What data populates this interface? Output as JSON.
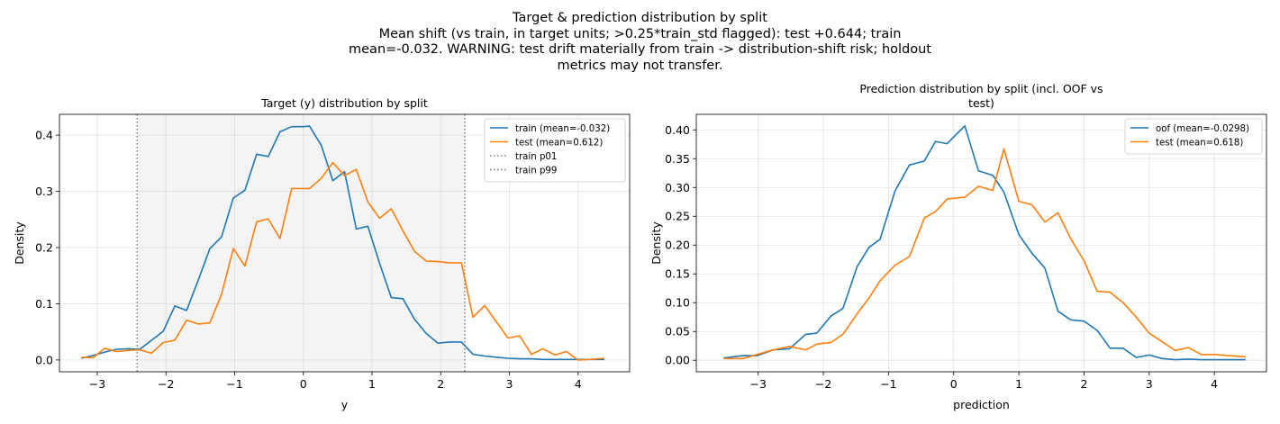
{
  "figure": {
    "suptitle_lines": [
      "Target & prediction distribution by split",
      "Mean shift (vs train, in target units; >0.25*train_std flagged): test +0.644; train",
      "mean=-0.032. WARNING: test drift materially from train -> distribution-shift risk; holdout",
      "metrics may not transfer."
    ]
  },
  "chart_data": [
    {
      "type": "line",
      "title": "Target (y) distribution by split",
      "xlabel": "y",
      "ylabel": "Density",
      "xlim": [
        -3.55,
        4.75
      ],
      "ylim": [
        -0.021,
        0.437
      ],
      "xticks": [
        -3,
        -2,
        -1,
        0,
        1,
        2,
        3,
        4
      ],
      "yticks": [
        0.0,
        0.1,
        0.2,
        0.3,
        0.4
      ],
      "ytick_format": 1,
      "grid": true,
      "legend": "top-right",
      "shaded_region": {
        "x0": -2.42,
        "x1": 2.35,
        "color": "#e9e9e9"
      },
      "vlines": [
        {
          "name": "train p01",
          "x": -2.42,
          "color": "#808080",
          "style": "dotted"
        },
        {
          "name": "train p99",
          "x": 2.35,
          "color": "#808080",
          "style": "dotted"
        }
      ],
      "series": [
        {
          "name": "train (mean=-0.032)",
          "color": "#1f77b4",
          "x": [
            -3.23,
            -3.06,
            -2.89,
            -2.72,
            -2.55,
            -2.38,
            -2.21,
            -2.04,
            -1.87,
            -1.7,
            -1.53,
            -1.36,
            -1.19,
            -1.02,
            -0.85,
            -0.68,
            -0.51,
            -0.34,
            -0.17,
            0.0,
            0.09,
            0.26,
            0.43,
            0.6,
            0.77,
            0.94,
            1.11,
            1.28,
            1.45,
            1.62,
            1.79,
            1.96,
            2.13,
            2.3,
            2.47,
            2.64,
            2.81,
            2.98,
            3.15,
            3.32,
            3.49,
            3.66,
            3.83,
            4.0,
            4.17,
            4.38
          ],
          "y": [
            0.003,
            0.008,
            0.014,
            0.019,
            0.02,
            0.019,
            0.035,
            0.051,
            0.096,
            0.088,
            0.142,
            0.198,
            0.219,
            0.288,
            0.302,
            0.366,
            0.362,
            0.406,
            0.415,
            0.415,
            0.416,
            0.382,
            0.319,
            0.335,
            0.233,
            0.238,
            0.172,
            0.111,
            0.109,
            0.072,
            0.047,
            0.03,
            0.032,
            0.032,
            0.01,
            0.007,
            0.005,
            0.003,
            0.002,
            0.002,
            0.001,
            0.001,
            0.001,
            0.001,
            0.001,
            0.001
          ]
        },
        {
          "name": "test (mean=0.612)",
          "color": "#ff7f0e",
          "x": [
            -3.23,
            -3.06,
            -2.89,
            -2.72,
            -2.55,
            -2.38,
            -2.21,
            -2.04,
            -1.87,
            -1.7,
            -1.53,
            -1.36,
            -1.19,
            -1.02,
            -0.85,
            -0.68,
            -0.51,
            -0.34,
            -0.17,
            0.0,
            0.09,
            0.26,
            0.43,
            0.6,
            0.77,
            0.94,
            1.11,
            1.28,
            1.45,
            1.62,
            1.79,
            1.96,
            2.13,
            2.3,
            2.47,
            2.64,
            2.81,
            2.98,
            3.15,
            3.32,
            3.49,
            3.66,
            3.83,
            4.0,
            4.17,
            4.38
          ],
          "y": [
            0.005,
            0.004,
            0.021,
            0.015,
            0.017,
            0.018,
            0.012,
            0.031,
            0.035,
            0.071,
            0.064,
            0.066,
            0.117,
            0.198,
            0.167,
            0.246,
            0.251,
            0.216,
            0.305,
            0.305,
            0.305,
            0.323,
            0.351,
            0.328,
            0.339,
            0.281,
            0.252,
            0.269,
            0.23,
            0.193,
            0.176,
            0.175,
            0.173,
            0.173,
            0.076,
            0.097,
            0.068,
            0.039,
            0.043,
            0.01,
            0.02,
            0.009,
            0.015,
            0.0,
            0.001,
            0.003
          ]
        }
      ]
    },
    {
      "type": "line",
      "title": "Prediction distribution by split (incl. OOF vs test)",
      "title_lines": [
        "Prediction distribution by split (incl. OOF vs",
        "test)"
      ],
      "xlabel": "prediction",
      "ylabel": "Density",
      "xlim": [
        -3.95,
        4.8
      ],
      "ylim": [
        -0.02,
        0.427
      ],
      "xticks": [
        -3,
        -2,
        -1,
        0,
        1,
        2,
        3,
        4
      ],
      "yticks": [
        0.0,
        0.05,
        0.1,
        0.15,
        0.2,
        0.25,
        0.3,
        0.35,
        0.4
      ],
      "ytick_format": 2,
      "grid": true,
      "legend": "top-right",
      "series": [
        {
          "name": "oof (mean=-0.0298)",
          "color": "#1f77b4",
          "x": [
            -3.53,
            -3.23,
            -3.02,
            -2.77,
            -2.52,
            -2.27,
            -2.1,
            -1.88,
            -1.7,
            -1.48,
            -1.3,
            -1.13,
            -0.9,
            -0.68,
            -0.45,
            -0.28,
            -0.1,
            0.17,
            0.38,
            0.6,
            0.77,
            1.0,
            1.2,
            1.4,
            1.6,
            1.8,
            2.0,
            2.2,
            2.4,
            2.6,
            2.8,
            3.0,
            3.2,
            3.4,
            3.6,
            3.8,
            4.0,
            4.48
          ],
          "y": [
            0.004,
            0.008,
            0.008,
            0.018,
            0.02,
            0.045,
            0.047,
            0.077,
            0.09,
            0.163,
            0.196,
            0.21,
            0.294,
            0.339,
            0.346,
            0.38,
            0.376,
            0.407,
            0.329,
            0.321,
            0.292,
            0.218,
            0.186,
            0.16,
            0.085,
            0.07,
            0.068,
            0.052,
            0.021,
            0.021,
            0.005,
            0.009,
            0.003,
            0.001,
            0.002,
            0.001,
            0.001,
            0.001
          ]
        },
        {
          "name": "test (mean=0.618)",
          "color": "#ff7f0e",
          "x": [
            -3.53,
            -3.23,
            -3.02,
            -2.77,
            -2.52,
            -2.27,
            -2.1,
            -1.88,
            -1.7,
            -1.48,
            -1.3,
            -1.13,
            -0.9,
            -0.68,
            -0.45,
            -0.28,
            -0.1,
            0.17,
            0.38,
            0.6,
            0.77,
            1.0,
            1.2,
            1.4,
            1.6,
            1.8,
            2.0,
            2.2,
            2.4,
            2.6,
            2.8,
            3.0,
            3.2,
            3.4,
            3.6,
            3.8,
            4.0,
            4.48
          ],
          "y": [
            0.003,
            0.003,
            0.01,
            0.018,
            0.024,
            0.018,
            0.028,
            0.031,
            0.045,
            0.081,
            0.108,
            0.138,
            0.165,
            0.18,
            0.247,
            0.258,
            0.28,
            0.283,
            0.302,
            0.295,
            0.367,
            0.276,
            0.27,
            0.24,
            0.256,
            0.21,
            0.173,
            0.12,
            0.118,
            0.1,
            0.075,
            0.047,
            0.032,
            0.017,
            0.022,
            0.01,
            0.01,
            0.006
          ]
        }
      ]
    }
  ]
}
